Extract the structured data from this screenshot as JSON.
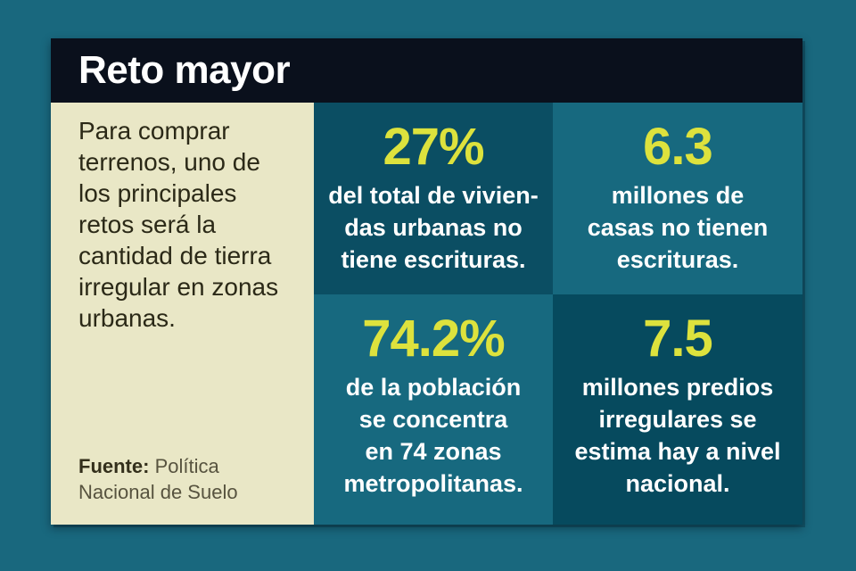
{
  "page": {
    "background": "#19687e"
  },
  "card": {
    "accent_color": "#dde23d",
    "header": {
      "title": "Reto mayor",
      "background": "#0a101c"
    },
    "intro": {
      "background": "#e9e7c6",
      "lines": [
        "Para comprar",
        "terrenos, uno de",
        "los principales",
        "retos será la",
        "cantidad de tierra",
        "irregular en zonas",
        "urbanas."
      ],
      "source_label": "Fuente:",
      "source_line1": "Política",
      "source_line2": "Nacional de Suelo"
    },
    "stats": [
      {
        "value": "27%",
        "lines": [
          "del total de vivien-",
          "das urbanas no",
          "tiene escrituras."
        ],
        "background": "#0b4e63"
      },
      {
        "value": "6.3",
        "lines": [
          "millones de",
          "casas no tienen",
          "escrituras."
        ],
        "background": "#17697f"
      },
      {
        "value": "74.2%",
        "lines": [
          "de la población",
          "se concentra",
          "en 74 zonas",
          "metropolitanas."
        ],
        "background": "#17697f"
      },
      {
        "value": "7.5",
        "lines": [
          "millones predios",
          "irregulares se",
          "estima hay a nivel",
          "nacional."
        ],
        "background": "#064a5e"
      }
    ]
  },
  "chart_data": {
    "type": "table",
    "title": "Reto mayor",
    "columns": [
      "valor",
      "descripción"
    ],
    "rows": [
      [
        "27%",
        "del total de viviendas urbanas no tiene escrituras."
      ],
      [
        "6.3",
        "millones de casas no tienen escrituras."
      ],
      [
        "74.2%",
        "de la población se concentra en 74 zonas metropolitanas."
      ],
      [
        "7.5",
        "millones predios irregulares se estima hay a nivel nacional."
      ]
    ],
    "note": "Para comprar terrenos, uno de los principales retos será la cantidad de tierra irregular en zonas urbanas.",
    "source": "Política Nacional de Suelo"
  }
}
